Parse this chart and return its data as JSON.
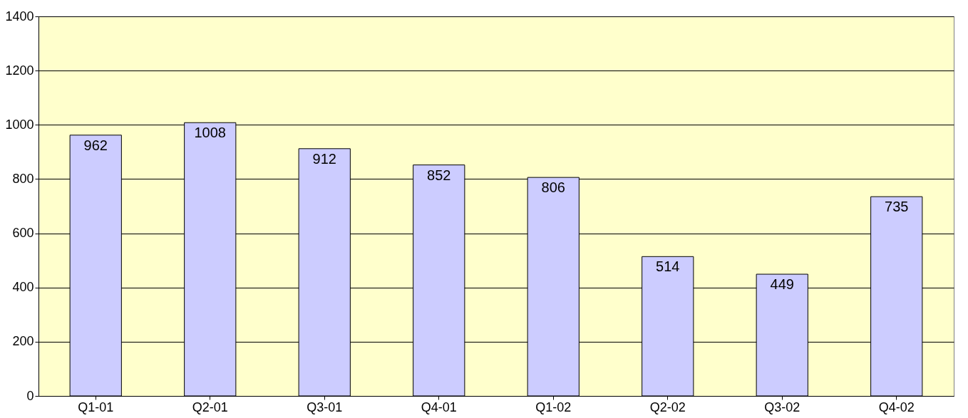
{
  "chart_data": {
    "type": "bar",
    "categories": [
      "Q1-01",
      "Q2-01",
      "Q3-01",
      "Q4-01",
      "Q1-02",
      "Q2-02",
      "Q3-02",
      "Q4-02"
    ],
    "values": [
      962,
      1008,
      912,
      852,
      806,
      514,
      449,
      735
    ],
    "color": "#ccccff",
    "ylim": [
      0,
      1400
    ],
    "yticks": [
      0,
      200,
      400,
      600,
      800,
      1000,
      1200,
      1400
    ],
    "grid": "y",
    "data_labels": true
  }
}
